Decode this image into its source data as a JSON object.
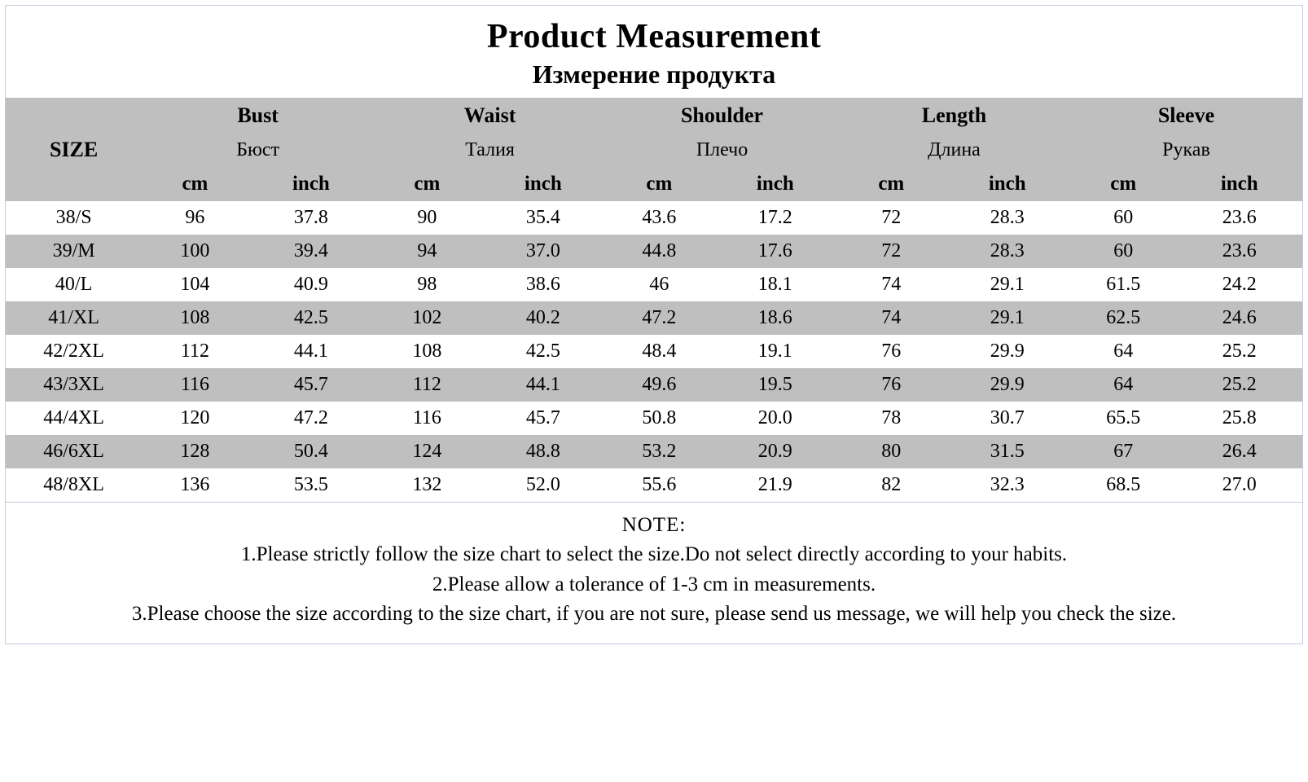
{
  "title": {
    "main": "Product Measurement",
    "sub": "Измерение продукта"
  },
  "headers": {
    "size": "SIZE",
    "groups": [
      {
        "en": "Bust",
        "ru": "Бюст"
      },
      {
        "en": "Waist",
        "ru": "Талия"
      },
      {
        "en": "Shoulder",
        "ru": "Плечо"
      },
      {
        "en": "Length",
        "ru": "Длина"
      },
      {
        "en": "Sleeve",
        "ru": "Рукав"
      }
    ],
    "units": {
      "cm": "cm",
      "inch": "inch"
    }
  },
  "rows": [
    {
      "size": "38/S",
      "bust_cm": "96",
      "bust_in": "37.8",
      "waist_cm": "90",
      "waist_in": "35.4",
      "sh_cm": "43.6",
      "sh_in": "17.2",
      "len_cm": "72",
      "len_in": "28.3",
      "sl_cm": "60",
      "sl_in": "23.6"
    },
    {
      "size": "39/M",
      "bust_cm": "100",
      "bust_in": "39.4",
      "waist_cm": "94",
      "waist_in": "37.0",
      "sh_cm": "44.8",
      "sh_in": "17.6",
      "len_cm": "72",
      "len_in": "28.3",
      "sl_cm": "60",
      "sl_in": "23.6"
    },
    {
      "size": "40/L",
      "bust_cm": "104",
      "bust_in": "40.9",
      "waist_cm": "98",
      "waist_in": "38.6",
      "sh_cm": "46",
      "sh_in": "18.1",
      "len_cm": "74",
      "len_in": "29.1",
      "sl_cm": "61.5",
      "sl_in": "24.2"
    },
    {
      "size": "41/XL",
      "bust_cm": "108",
      "bust_in": "42.5",
      "waist_cm": "102",
      "waist_in": "40.2",
      "sh_cm": "47.2",
      "sh_in": "18.6",
      "len_cm": "74",
      "len_in": "29.1",
      "sl_cm": "62.5",
      "sl_in": "24.6"
    },
    {
      "size": "42/2XL",
      "bust_cm": "112",
      "bust_in": "44.1",
      "waist_cm": "108",
      "waist_in": "42.5",
      "sh_cm": "48.4",
      "sh_in": "19.1",
      "len_cm": "76",
      "len_in": "29.9",
      "sl_cm": "64",
      "sl_in": "25.2"
    },
    {
      "size": "43/3XL",
      "bust_cm": "116",
      "bust_in": "45.7",
      "waist_cm": "112",
      "waist_in": "44.1",
      "sh_cm": "49.6",
      "sh_in": "19.5",
      "len_cm": "76",
      "len_in": "29.9",
      "sl_cm": "64",
      "sl_in": "25.2"
    },
    {
      "size": "44/4XL",
      "bust_cm": "120",
      "bust_in": "47.2",
      "waist_cm": "116",
      "waist_in": "45.7",
      "sh_cm": "50.8",
      "sh_in": "20.0",
      "len_cm": "78",
      "len_in": "30.7",
      "sl_cm": "65.5",
      "sl_in": "25.8"
    },
    {
      "size": "46/6XL",
      "bust_cm": "128",
      "bust_in": "50.4",
      "waist_cm": "124",
      "waist_in": "48.8",
      "sh_cm": "53.2",
      "sh_in": "20.9",
      "len_cm": "80",
      "len_in": "31.5",
      "sl_cm": "67",
      "sl_in": "26.4"
    },
    {
      "size": "48/8XL",
      "bust_cm": "136",
      "bust_in": "53.5",
      "waist_cm": "132",
      "waist_in": "52.0",
      "sh_cm": "55.6",
      "sh_in": "21.9",
      "len_cm": "82",
      "len_in": "32.3",
      "sl_cm": "68.5",
      "sl_in": "27.0"
    }
  ],
  "note": {
    "title": "NOTE:",
    "lines": [
      "1.Please strictly follow the size chart to select the size.Do not select directly according to your habits.",
      "2.Please allow a tolerance of 1-3 cm in measurements.",
      "3.Please choose the size according to the size chart, if you are not sure, please send us message, we will help you check the size."
    ]
  },
  "style": {
    "border_color": "#c4c9e0",
    "header_bg": "#bfbfbf",
    "row_alt_bg": "#bfbfbf",
    "row_bg": "#ffffff",
    "text_color": "#000000",
    "font_family": "Times New Roman"
  }
}
